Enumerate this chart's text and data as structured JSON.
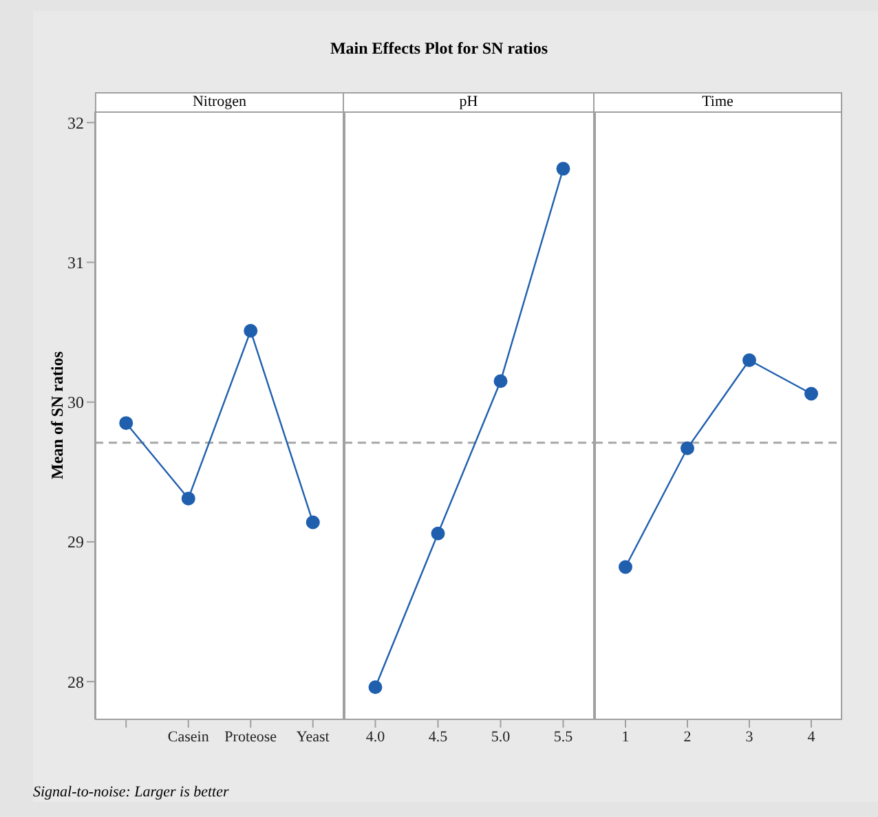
{
  "chart_data": [
    {
      "type": "line",
      "subtitle": "Nitrogen",
      "ylabel": "Mean of SN ratios",
      "annotations": [
        "Signal-to-noise: Larger is better"
      ],
      "categories": [
        null,
        "Casein",
        "Proteose",
        "Yeast"
      ],
      "series": [
        {
          "color": "#1f5fae",
          "values": [
            29.85,
            29.31,
            30.51,
            29.14
          ]
        }
      ],
      "ylim": [
        27.73,
        32.08
      ],
      "yticks": [
        28,
        29,
        30,
        31,
        32
      ],
      "marker": "circle",
      "line_style": "solid",
      "grid": false,
      "legend": false,
      "ref_lines": [
        {
          "axis": "y",
          "value": 29.71,
          "color": "#a6a6a6",
          "line_style": "dashed"
        }
      ]
    },
    {
      "type": "line",
      "title": "Main Effects Plot for SN ratios",
      "subtitle": "pH",
      "categories": [
        "4.0",
        "4.5",
        "5.0",
        "5.5"
      ],
      "series": [
        {
          "color": "#1f5fae",
          "values": [
            27.96,
            29.06,
            30.15,
            31.67
          ]
        }
      ],
      "ylim": [
        27.73,
        32.08
      ],
      "yticks": [
        28,
        29,
        30,
        31,
        32
      ],
      "tick_labels": "x",
      "marker": "circle",
      "line_style": "solid",
      "grid": false,
      "legend": false,
      "ref_lines": [
        {
          "axis": "y",
          "value": 29.71,
          "color": "#a6a6a6",
          "line_style": "dashed"
        }
      ]
    },
    {
      "type": "line",
      "subtitle": "Time",
      "categories": [
        "1",
        "2",
        "3",
        "4"
      ],
      "series": [
        {
          "color": "#1f5fae",
          "values": [
            28.82,
            29.67,
            30.3,
            30.06
          ]
        }
      ],
      "ylim": [
        27.73,
        32.08
      ],
      "yticks": [
        28,
        29,
        30,
        31,
        32
      ],
      "tick_labels": "x",
      "marker": "circle",
      "line_style": "solid",
      "grid": false,
      "legend": false,
      "ref_lines": [
        {
          "axis": "y",
          "value": 29.71,
          "color": "#a6a6a6",
          "line_style": "dashed"
        }
      ]
    }
  ]
}
